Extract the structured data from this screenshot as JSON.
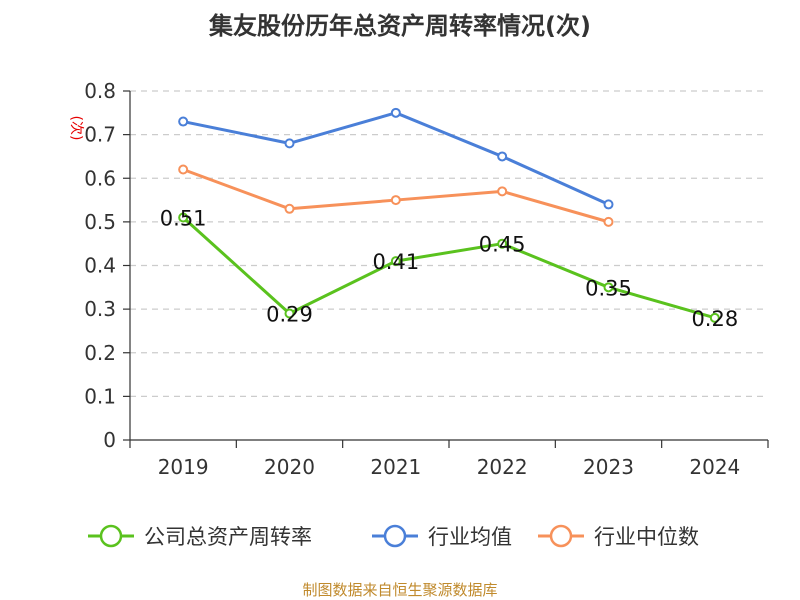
{
  "chart_data": {
    "type": "line",
    "title": "集友股份历年总资产周转率情况(次)",
    "ylabel": "(次)",
    "xlabel": "",
    "categories": [
      "2019",
      "2020",
      "2021",
      "2022",
      "2023",
      "2024"
    ],
    "ylim": [
      0,
      0.8
    ],
    "yticks": [
      "0",
      "0.1",
      "0.2",
      "0.3",
      "0.4",
      "0.5",
      "0.6",
      "0.7",
      "0.8"
    ],
    "grid": "horizontal dashed",
    "legend_position": "bottom",
    "series": [
      {
        "name": "公司总资产周转率",
        "color": "#5ac21e",
        "values": [
          0.51,
          0.29,
          0.41,
          0.45,
          0.35,
          0.28
        ],
        "labels": [
          "0.51",
          "0.29",
          "0.41",
          "0.45",
          "0.35",
          "0.28"
        ]
      },
      {
        "name": "行业均值",
        "color": "#4a7fd8",
        "values": [
          0.73,
          0.68,
          0.75,
          0.65,
          0.54,
          null
        ]
      },
      {
        "name": "行业中位数",
        "color": "#f7915a",
        "values": [
          0.62,
          0.53,
          0.55,
          0.57,
          0.5,
          null
        ]
      }
    ],
    "source": "制图数据来自恒生聚源数据库"
  }
}
